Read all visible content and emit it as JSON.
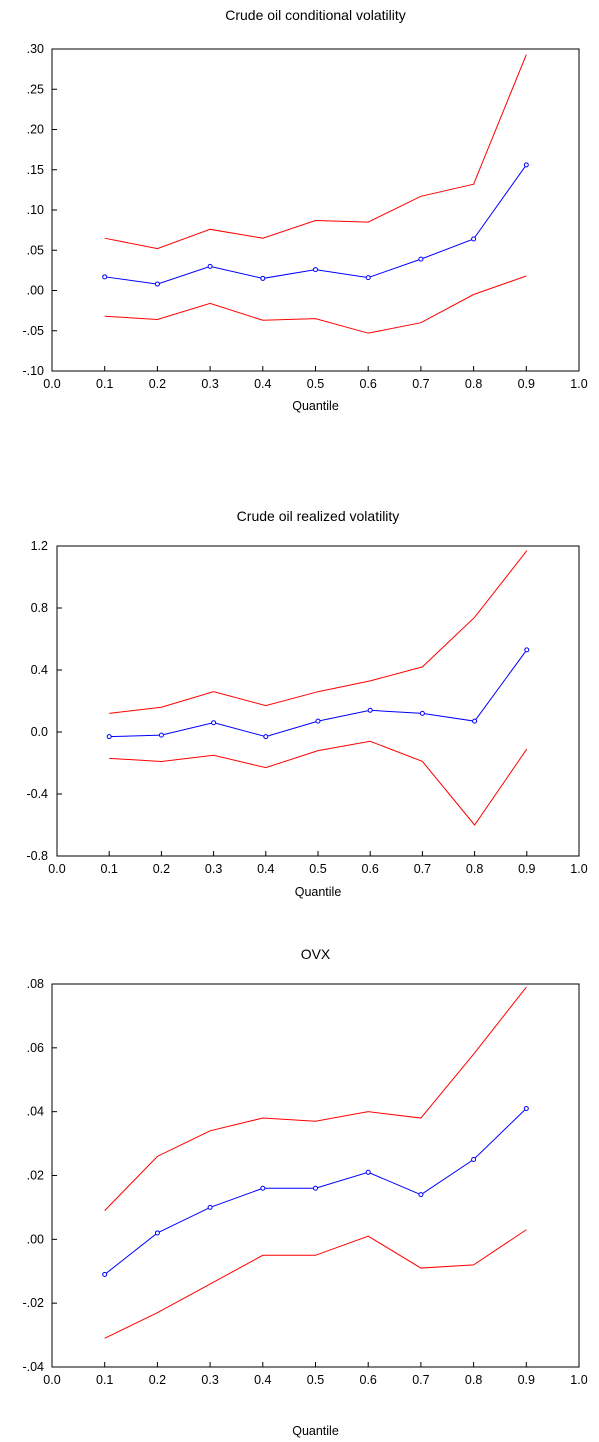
{
  "chart_data": [
    {
      "type": "line",
      "title": "Crude oil conditional volatility",
      "xlabel": "Quantile",
      "ylabel": "",
      "xlim": [
        0.0,
        1.0
      ],
      "ylim": [
        -0.1,
        0.3
      ],
      "x_ticks": [
        0.0,
        0.1,
        0.2,
        0.3,
        0.4,
        0.5,
        0.6,
        0.7,
        0.8,
        0.9,
        1.0
      ],
      "x_tick_labels": [
        "0.0",
        "0.1",
        "0.2",
        "0.3",
        "0.4",
        "0.5",
        "0.6",
        "0.7",
        "0.8",
        "0.9",
        "1.0"
      ],
      "y_ticks": [
        -0.1,
        -0.05,
        0.0,
        0.05,
        0.1,
        0.15,
        0.2,
        0.25,
        0.3
      ],
      "y_tick_labels": [
        "-.10",
        "-.05",
        ".00",
        ".05",
        ".10",
        ".15",
        ".20",
        ".25",
        ".30"
      ],
      "grid": false,
      "x": [
        0.1,
        0.2,
        0.3,
        0.4,
        0.5,
        0.6,
        0.7,
        0.8,
        0.9
      ],
      "series": [
        {
          "role": "upper",
          "color": "#ff0000",
          "markers": false,
          "values": [
            0.065,
            0.052,
            0.076,
            0.065,
            0.087,
            0.085,
            0.117,
            0.132,
            0.293
          ]
        },
        {
          "role": "estimate",
          "color": "#0000ff",
          "markers": true,
          "values": [
            0.017,
            0.008,
            0.03,
            0.015,
            0.026,
            0.016,
            0.039,
            0.064,
            0.156
          ]
        },
        {
          "role": "lower",
          "color": "#ff0000",
          "markers": false,
          "values": [
            -0.032,
            -0.036,
            -0.016,
            -0.037,
            -0.035,
            -0.053,
            -0.04,
            -0.005,
            0.018
          ]
        }
      ]
    },
    {
      "type": "line",
      "title": "Crude oil realized volatility",
      "xlabel": "Quantile",
      "ylabel": "",
      "xlim": [
        0.0,
        1.0
      ],
      "ylim": [
        -0.8,
        1.2
      ],
      "x_ticks": [
        0.0,
        0.1,
        0.2,
        0.3,
        0.4,
        0.5,
        0.6,
        0.7,
        0.8,
        0.9,
        1.0
      ],
      "x_tick_labels": [
        "0.0",
        "0.1",
        "0.2",
        "0.3",
        "0.4",
        "0.5",
        "0.6",
        "0.7",
        "0.8",
        "0.9",
        "1.0"
      ],
      "y_ticks": [
        -0.8,
        -0.4,
        0.0,
        0.4,
        0.8,
        1.2
      ],
      "y_tick_labels": [
        "-0.8",
        "-0.4",
        "0.0",
        "0.4",
        "0.8",
        "1.2"
      ],
      "grid": false,
      "x": [
        0.1,
        0.2,
        0.3,
        0.4,
        0.5,
        0.6,
        0.7,
        0.8,
        0.9
      ],
      "series": [
        {
          "role": "upper",
          "color": "#ff0000",
          "markers": false,
          "values": [
            0.12,
            0.16,
            0.26,
            0.17,
            0.26,
            0.33,
            0.42,
            0.74,
            1.17
          ]
        },
        {
          "role": "estimate",
          "color": "#0000ff",
          "markers": true,
          "values": [
            -0.03,
            -0.02,
            0.06,
            -0.03,
            0.07,
            0.14,
            0.12,
            0.07,
            0.53
          ]
        },
        {
          "role": "lower",
          "color": "#ff0000",
          "markers": false,
          "values": [
            -0.17,
            -0.19,
            -0.15,
            -0.23,
            -0.12,
            -0.06,
            -0.19,
            -0.6,
            -0.11
          ]
        }
      ]
    },
    {
      "type": "line",
      "title": "OVX",
      "xlabel": "Quantile",
      "ylabel": "",
      "xlim": [
        0.0,
        1.0
      ],
      "ylim": [
        -0.04,
        0.08
      ],
      "x_ticks": [
        0.0,
        0.1,
        0.2,
        0.3,
        0.4,
        0.5,
        0.6,
        0.7,
        0.8,
        0.9,
        1.0
      ],
      "x_tick_labels": [
        "0.0",
        "0.1",
        "0.2",
        "0.3",
        "0.4",
        "0.5",
        "0.6",
        "0.7",
        "0.8",
        "0.9",
        "1.0"
      ],
      "y_ticks": [
        -0.04,
        -0.02,
        0.0,
        0.02,
        0.04,
        0.06,
        0.08
      ],
      "y_tick_labels": [
        "-.04",
        "-.02",
        ".00",
        ".02",
        ".04",
        ".06",
        ".08"
      ],
      "grid": false,
      "x": [
        0.1,
        0.2,
        0.3,
        0.4,
        0.5,
        0.6,
        0.7,
        0.8,
        0.9
      ],
      "series": [
        {
          "role": "upper",
          "color": "#ff0000",
          "markers": false,
          "values": [
            0.009,
            0.026,
            0.034,
            0.038,
            0.037,
            0.04,
            0.038,
            0.058,
            0.079
          ]
        },
        {
          "role": "estimate",
          "color": "#0000ff",
          "markers": true,
          "values": [
            -0.011,
            0.002,
            0.01,
            0.016,
            0.016,
            0.021,
            0.014,
            0.025,
            0.041
          ]
        },
        {
          "role": "lower",
          "color": "#ff0000",
          "markers": false,
          "values": [
            -0.031,
            -0.023,
            -0.014,
            -0.005,
            -0.005,
            0.001,
            -0.009,
            -0.008,
            0.003
          ]
        }
      ]
    }
  ]
}
